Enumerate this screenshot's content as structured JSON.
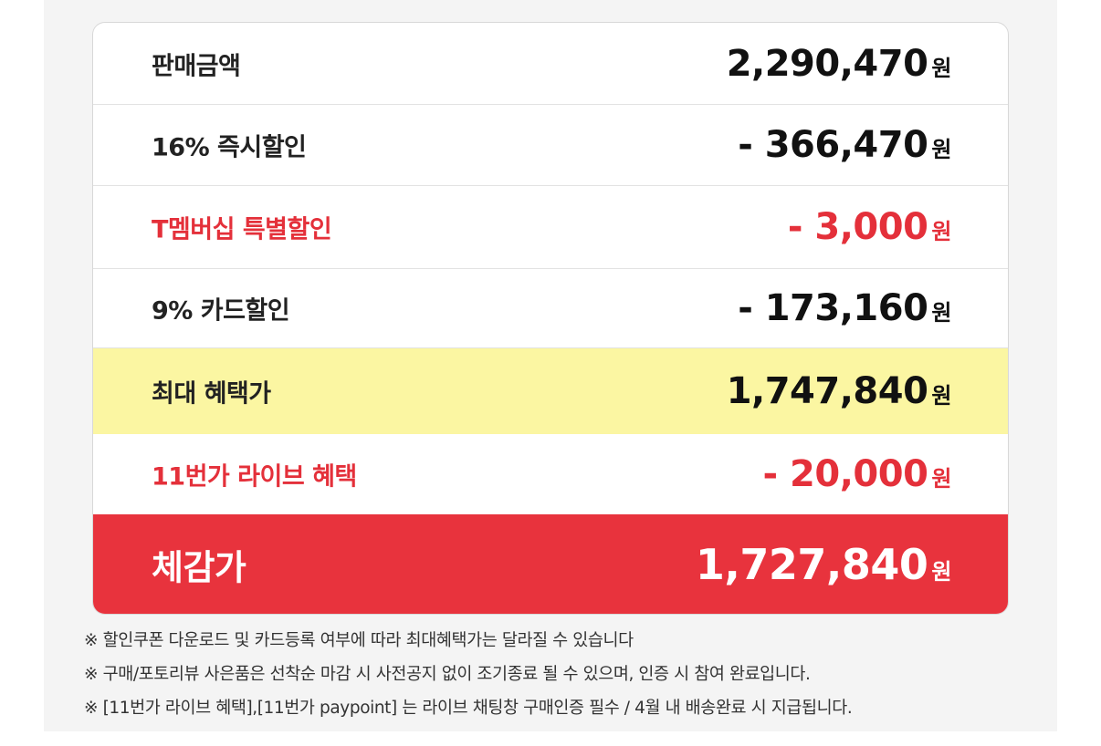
{
  "rows": [
    {
      "label": "판매금액",
      "amount": "2,290,470",
      "unit": "원"
    },
    {
      "label": "16% 즉시할인",
      "amount": "- 366,470",
      "unit": "원"
    },
    {
      "label": "T멤버십 특별할인",
      "amount": "- 3,000",
      "unit": "원"
    },
    {
      "label": "9% 카드할인",
      "amount": "- 173,160",
      "unit": "원"
    },
    {
      "label": "최대 혜택가",
      "amount": "1,747,840",
      "unit": "원"
    },
    {
      "label": "11번가 라이브 혜택",
      "amount": "- 20,000",
      "unit": "원"
    },
    {
      "label": "체감가",
      "amount": "1,727,840",
      "unit": "원"
    }
  ],
  "notes": [
    "※ 할인쿠폰 다운로드 및 카드등록 여부에 따라 최대혜택가는 달라질 수 있습니다",
    "※ 구매/포토리뷰 사은품은 선착순 마감 시 사전공지 없이 조기종료 될 수 있으며, 인증 시 참여 완료입니다.",
    "※ [11번가 라이브 혜택],[11번가 paypoint] 는 라이브 채팅창 구매인증 필수 / 4월 내 배송완료 시 지급됩니다."
  ]
}
